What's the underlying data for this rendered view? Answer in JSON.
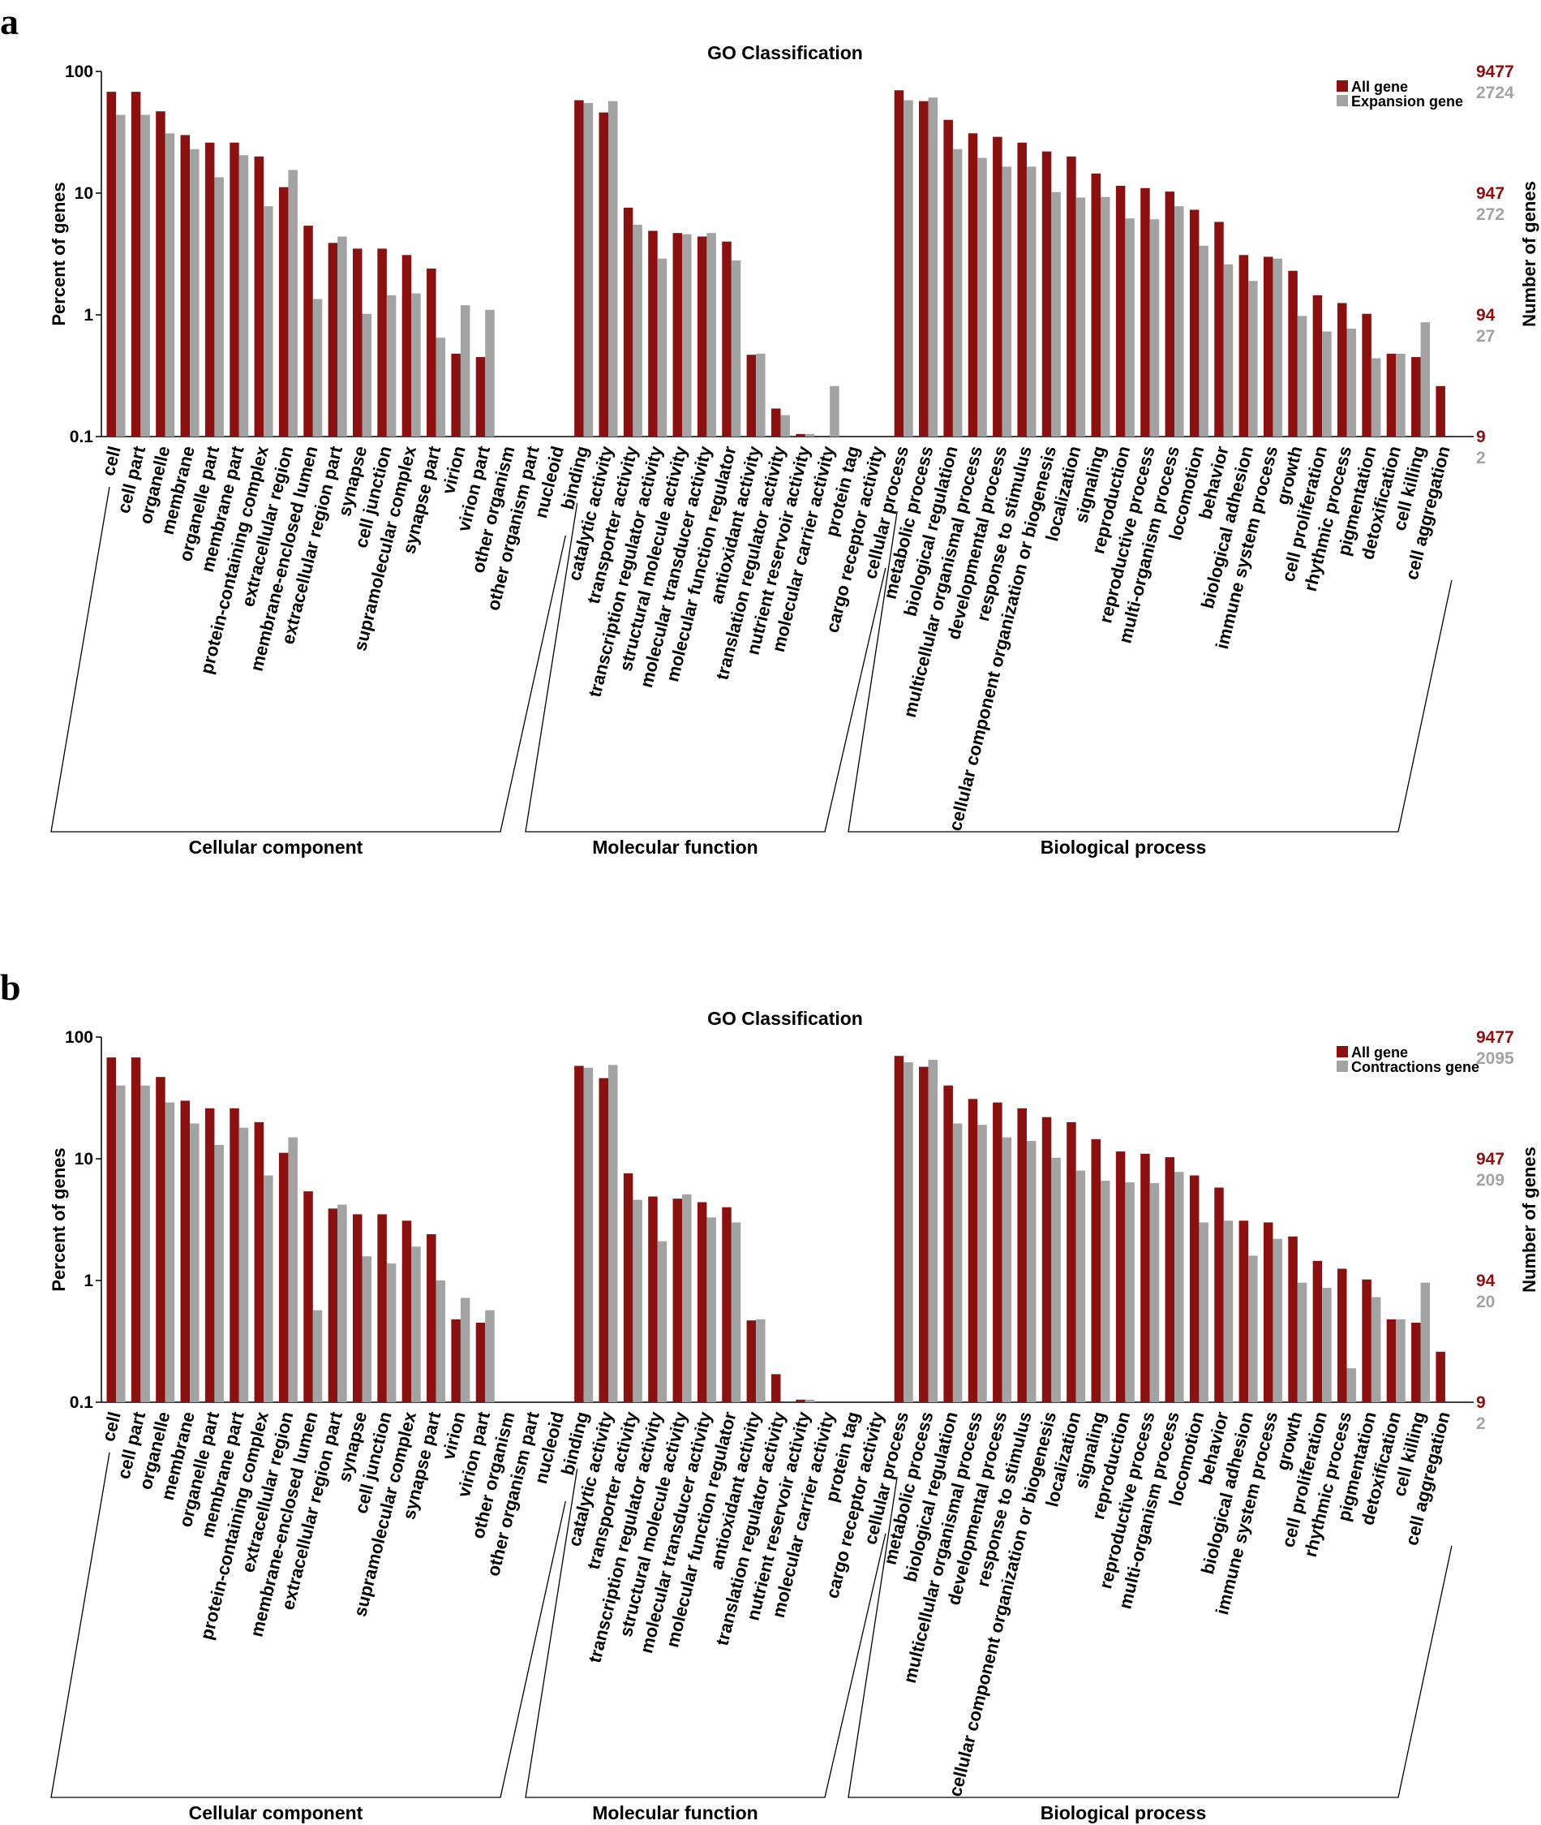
{
  "colors": {
    "all_gene": "#8b1010",
    "secondary_gene": "#a3a3a3"
  },
  "chart_data": [
    {
      "panel": "a",
      "type": "bar",
      "title": "GO Classification",
      "ylabel": "Percent of genes",
      "y2label": "Number of genes",
      "yscale": "log",
      "ylim": [
        0.1,
        100
      ],
      "yticks": [
        "100",
        "10",
        "1",
        "0.1"
      ],
      "right_ticks_all": [
        "9477",
        "947",
        "94",
        "9"
      ],
      "right_ticks_secondary": [
        "2724",
        "272",
        "27",
        "2"
      ],
      "legend_position": "top-right",
      "categories": [
        "cell",
        "cell part",
        "organelle",
        "membrane",
        "organelle part",
        "membrane part",
        "protein-containing complex",
        "extracellular region",
        "membrane-enclosed lumen",
        "extracellular region part",
        "synapse",
        "cell junction",
        "supramolecular complex",
        "synapse part",
        "virion",
        "virion part",
        "other organism",
        "other organism part",
        "nucleoid",
        "binding",
        "catalytic activity",
        "transporter activity",
        "transcription regulator activity",
        "structural molecule activity",
        "molecular transducer activity",
        "molecular function regulator",
        "antioxidant activity",
        "translation regulator activity",
        "nutrient reservoir activity",
        "molecular carrier activity",
        "protein tag",
        "cargo receptor activity",
        "cellular process",
        "metabolic process",
        "biological regulation",
        "multicellular organismal process",
        "developmental process",
        "response to stimulus",
        "cellular component organization or biogenesis",
        "localization",
        "signaling",
        "reproduction",
        "reproductive process",
        "multi-organism process",
        "locomotion",
        "behavior",
        "biological adhesion",
        "immune system process",
        "growth",
        "cell proliferation",
        "rhythmic process",
        "pigmentation",
        "detoxification",
        "cell killing",
        "cell aggregation"
      ],
      "groups": [
        {
          "label": "Cellular component",
          "start": 0,
          "end": 18
        },
        {
          "label": "Molecular function",
          "start": 19,
          "end": 31
        },
        {
          "label": "Biological process",
          "start": 32,
          "end": 54
        }
      ],
      "series": [
        {
          "name": "All gene",
          "values": [
            68,
            68,
            47,
            30,
            26,
            26,
            20,
            11.2,
            5.4,
            3.9,
            3.5,
            3.5,
            3.1,
            2.4,
            0.48,
            0.45,
            null,
            null,
            null,
            58,
            46,
            7.6,
            4.9,
            4.7,
            4.4,
            4.0,
            0.47,
            0.17,
            0.105,
            null,
            null,
            null,
            70,
            57,
            40,
            31,
            29,
            26,
            22,
            20,
            14.5,
            11.5,
            11,
            10.3,
            7.3,
            5.8,
            3.1,
            3.0,
            2.3,
            1.45,
            1.25,
            1.02,
            0.48,
            0.45,
            0.26
          ]
        },
        {
          "name": "Expansion gene",
          "values": [
            44,
            44,
            31,
            23,
            13.5,
            20.5,
            7.8,
            15.5,
            1.35,
            4.4,
            1.02,
            1.45,
            1.5,
            0.65,
            1.2,
            1.1,
            null,
            null,
            null,
            55,
            57,
            5.5,
            2.9,
            4.6,
            4.7,
            2.8,
            0.48,
            0.15,
            0.105,
            0.26,
            null,
            null,
            58,
            61,
            23,
            19.5,
            16.5,
            16.5,
            10.2,
            9.2,
            9.3,
            6.2,
            6.1,
            7.8,
            3.7,
            2.6,
            1.9,
            2.9,
            0.98,
            0.73,
            0.77,
            0.44,
            0.48,
            0.87,
            null
          ]
        }
      ]
    },
    {
      "panel": "b",
      "type": "bar",
      "title": "GO Classification",
      "ylabel": "Percent of genes",
      "y2label": "Number of genes",
      "yscale": "log",
      "ylim": [
        0.1,
        100
      ],
      "yticks": [
        "100",
        "10",
        "1",
        "0.1"
      ],
      "right_ticks_all": [
        "9477",
        "947",
        "94",
        "9"
      ],
      "right_ticks_secondary": [
        "2095",
        "209",
        "20",
        "2"
      ],
      "legend_position": "top-right",
      "categories": [
        "cell",
        "cell part",
        "organelle",
        "membrane",
        "organelle part",
        "membrane part",
        "protein-containing complex",
        "extracellular region",
        "membrane-enclosed lumen",
        "extracellular region part",
        "synapse",
        "cell junction",
        "supramolecular complex",
        "synapse part",
        "virion",
        "virion part",
        "other organism",
        "other organism part",
        "nucleoid",
        "binding",
        "catalytic activity",
        "transporter activity",
        "transcription regulator activity",
        "structural molecule activity",
        "molecular transducer activity",
        "molecular function regulator",
        "antioxidant activity",
        "translation regulator activity",
        "nutrient reservoir activity",
        "molecular carrier activity",
        "protein tag",
        "cargo receptor activity",
        "cellular process",
        "metabolic process",
        "biological regulation",
        "multicellular organismal process",
        "developmental process",
        "response to stimulus",
        "cellular component organization or biogenesis",
        "localization",
        "signaling",
        "reproduction",
        "reproductive process",
        "multi-organism process",
        "locomotion",
        "behavior",
        "biological adhesion",
        "immune system process",
        "growth",
        "cell proliferation",
        "rhythmic process",
        "pigmentation",
        "detoxification",
        "cell killing",
        "cell aggregation"
      ],
      "groups": [
        {
          "label": "Cellular component",
          "start": 0,
          "end": 18
        },
        {
          "label": "Molecular function",
          "start": 19,
          "end": 31
        },
        {
          "label": "Biological process",
          "start": 32,
          "end": 54
        }
      ],
      "series": [
        {
          "name": "All gene",
          "values": [
            68,
            68,
            47,
            30,
            26,
            26,
            20,
            11.2,
            5.4,
            3.9,
            3.5,
            3.5,
            3.1,
            2.4,
            0.48,
            0.45,
            null,
            null,
            null,
            58,
            46,
            7.6,
            4.9,
            4.7,
            4.4,
            4.0,
            0.47,
            0.17,
            0.105,
            null,
            null,
            null,
            70,
            57,
            40,
            31,
            29,
            26,
            22,
            20,
            14.5,
            11.5,
            11,
            10.3,
            7.3,
            5.8,
            3.1,
            3.0,
            2.3,
            1.45,
            1.25,
            1.02,
            0.48,
            0.45,
            0.26
          ]
        },
        {
          "name": "Contractions gene",
          "values": [
            40,
            40,
            29,
            19.5,
            13,
            18,
            7.3,
            15,
            0.57,
            4.2,
            1.58,
            1.38,
            1.9,
            1.0,
            0.72,
            0.57,
            null,
            null,
            null,
            56,
            59,
            4.6,
            2.1,
            5.1,
            3.3,
            3.0,
            0.48,
            null,
            0.105,
            null,
            null,
            null,
            62,
            65,
            19.5,
            19,
            15,
            14,
            10.2,
            8.0,
            6.6,
            6.4,
            6.3,
            7.8,
            3.0,
            3.1,
            1.6,
            2.2,
            0.96,
            0.87,
            0.19,
            0.73,
            0.48,
            0.96,
            null
          ]
        }
      ]
    }
  ],
  "panels": [
    {
      "letter": "a",
      "legend": [
        "All gene",
        "Expansion gene"
      ]
    },
    {
      "letter": "b",
      "legend": [
        "All gene",
        "Contractions gene"
      ]
    }
  ]
}
